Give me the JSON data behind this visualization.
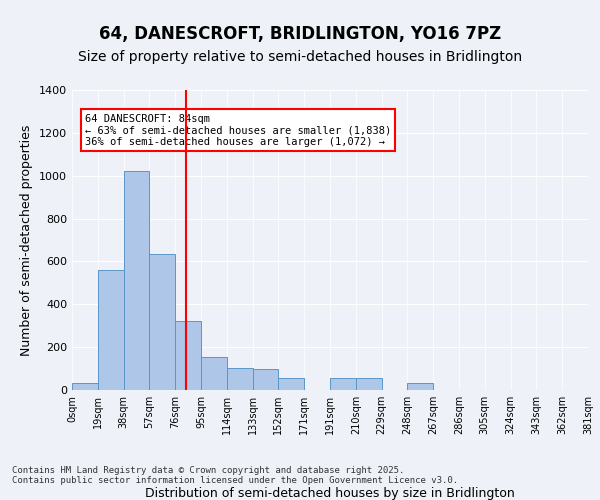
{
  "title": "64, DANESCROFT, BRIDLINGTON, YO16 7PZ",
  "subtitle": "Size of property relative to semi-detached houses in Bridlington",
  "xlabel": "Distribution of semi-detached houses by size in Bridlington",
  "ylabel": "Number of semi-detached properties",
  "bins": [
    "0sqm",
    "19sqm",
    "38sqm",
    "57sqm",
    "76sqm",
    "95sqm",
    "114sqm",
    "133sqm",
    "152sqm",
    "171sqm",
    "191sqm",
    "210sqm",
    "229sqm",
    "248sqm",
    "267sqm",
    "286sqm",
    "305sqm",
    "324sqm",
    "343sqm",
    "362sqm",
    "381sqm"
  ],
  "values": [
    35,
    560,
    1020,
    635,
    320,
    155,
    105,
    100,
    55,
    0,
    55,
    55,
    0,
    35,
    0,
    0,
    0,
    0,
    0,
    0
  ],
  "bar_color": "#aec6e8",
  "bar_edge_color": "#5a96c8",
  "vline_x": 4.5,
  "vline_color": "red",
  "annotation_text": "64 DANESCROFT: 84sqm\n← 63% of semi-detached houses are smaller (1,838)\n36% of semi-detached houses are larger (1,072) →",
  "annotation_box_color": "white",
  "annotation_box_edgecolor": "red",
  "ylim": [
    0,
    1400
  ],
  "yticks": [
    0,
    200,
    400,
    600,
    800,
    1000,
    1200,
    1400
  ],
  "bg_color": "#eef2f8",
  "plot_bg_color": "#eef2f8",
  "footer": "Contains HM Land Registry data © Crown copyright and database right 2025.\nContains public sector information licensed under the Open Government Licence v3.0.",
  "title_fontsize": 12,
  "subtitle_fontsize": 10,
  "xlabel_fontsize": 9,
  "ylabel_fontsize": 9
}
